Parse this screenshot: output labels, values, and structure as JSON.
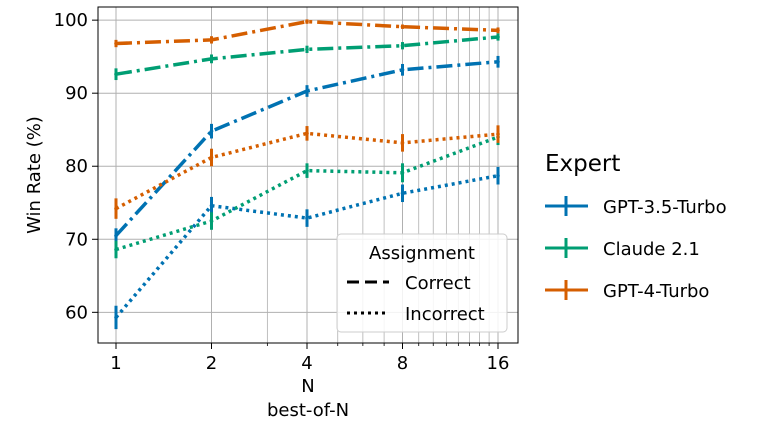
{
  "chart_data": {
    "type": "line",
    "xscale": "log2",
    "x": [
      1,
      2,
      4,
      8,
      16
    ],
    "xticks": [
      "1",
      "2",
      "4",
      "8",
      "16"
    ],
    "yticks": [
      "60",
      "70",
      "80",
      "90",
      "100"
    ],
    "ylim": [
      55.8,
      101.8
    ],
    "xlabel": "N",
    "xlabel2": "best-of-N",
    "ylabel": "Win Rate (%)",
    "grid": true,
    "series": [
      {
        "name": "GPT-3.5-Turbo",
        "assignment": "Correct",
        "color": "#0072B2",
        "values": [
          70.5,
          84.8,
          90.3,
          93.2,
          94.3
        ],
        "err": [
          1.0,
          1.0,
          0.8,
          0.8,
          0.8
        ]
      },
      {
        "name": "Claude 2.1",
        "assignment": "Correct",
        "color": "#009E73",
        "values": [
          92.6,
          94.7,
          96.0,
          96.5,
          97.7
        ],
        "err": [
          0.8,
          0.6,
          0.5,
          0.5,
          0.5
        ]
      },
      {
        "name": "GPT-4-Turbo",
        "assignment": "Correct",
        "color": "#D55E00",
        "values": [
          96.8,
          97.3,
          99.8,
          99.1,
          98.6
        ],
        "err": [
          0.5,
          0.5,
          0.3,
          0.3,
          0.4
        ]
      },
      {
        "name": "GPT-3.5-Turbo",
        "assignment": "Incorrect",
        "color": "#0072B2",
        "values": [
          59.3,
          74.6,
          72.9,
          76.3,
          78.7
        ],
        "err": [
          1.6,
          1.2,
          1.2,
          1.2,
          1.2
        ]
      },
      {
        "name": "Claude 2.1",
        "assignment": "Incorrect",
        "color": "#009E73",
        "values": [
          68.6,
          72.5,
          79.4,
          79.1,
          84.0
        ],
        "err": [
          1.2,
          1.2,
          1.0,
          1.3,
          1.1
        ]
      },
      {
        "name": "GPT-4-Turbo",
        "assignment": "Incorrect",
        "color": "#D55E00",
        "values": [
          74.2,
          81.2,
          84.5,
          83.2,
          84.4
        ],
        "err": [
          1.4,
          1.2,
          1.0,
          1.2,
          1.2
        ]
      }
    ],
    "legend_assignment": {
      "title": "Assignment",
      "entries": [
        {
          "label": "Correct",
          "style": "dashed"
        },
        {
          "label": "Incorrect",
          "style": "dotted"
        }
      ],
      "placement": "lower-right-inside"
    },
    "legend_expert": {
      "title": "Expert",
      "entries": [
        {
          "label": "GPT-3.5-Turbo",
          "color": "#0072B2"
        },
        {
          "label": "Claude 2.1",
          "color": "#009E73"
        },
        {
          "label": "GPT-4-Turbo",
          "color": "#D55E00"
        }
      ],
      "placement": "right-outside"
    }
  }
}
